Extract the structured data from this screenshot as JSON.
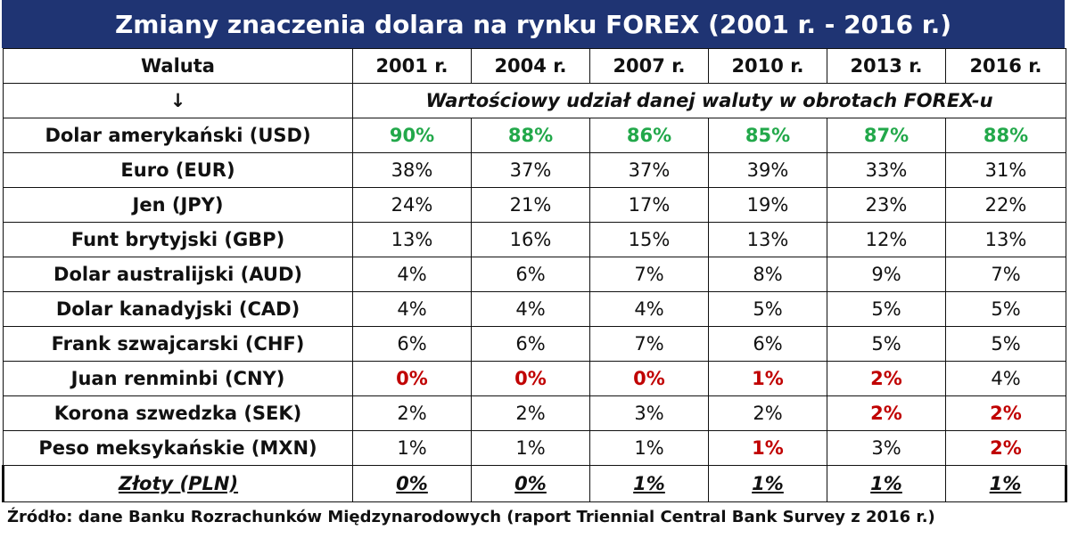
{
  "title": "Zmiany znaczenia dolara na rynku FOREX (2001 r. - 2016 r.)",
  "source": "Źródło: dane Banku Rozrachunków Międzynarodowych (raport Triennial Central Bank Survey z 2016 r.)",
  "colors": {
    "title_bg": "#1f3473",
    "usd_highlight": "#22a84a",
    "low_highlight": "#c00000"
  },
  "chart_data": {
    "type": "table",
    "corner_label": "Waluta",
    "corner_arrow": "↓",
    "columns": [
      "2001 r.",
      "2004 r.",
      "2007 r.",
      "2010 r.",
      "2013 r.",
      "2016 r."
    ],
    "caption": "Wartościowy udział danej waluty w obrotach FOREX-u",
    "rows": [
      {
        "label": "Dolar amerykański (USD)",
        "values": [
          "90%",
          "88%",
          "86%",
          "85%",
          "87%",
          "88%"
        ],
        "highlight": [
          "green",
          "green",
          "green",
          "green",
          "green",
          "green"
        ]
      },
      {
        "label": "Euro (EUR)",
        "values": [
          "38%",
          "37%",
          "37%",
          "39%",
          "33%",
          "31%"
        ],
        "highlight": [
          "",
          "",
          "",
          "",
          "",
          ""
        ]
      },
      {
        "label": "Jen (JPY)",
        "values": [
          "24%",
          "21%",
          "17%",
          "19%",
          "23%",
          "22%"
        ],
        "highlight": [
          "",
          "",
          "",
          "",
          "",
          ""
        ]
      },
      {
        "label": "Funt brytyjski (GBP)",
        "values": [
          "13%",
          "16%",
          "15%",
          "13%",
          "12%",
          "13%"
        ],
        "highlight": [
          "",
          "",
          "",
          "",
          "",
          ""
        ]
      },
      {
        "label": "Dolar australijski (AUD)",
        "values": [
          "4%",
          "6%",
          "7%",
          "8%",
          "9%",
          "7%"
        ],
        "highlight": [
          "",
          "",
          "",
          "",
          "",
          ""
        ]
      },
      {
        "label": "Dolar kanadyjski (CAD)",
        "values": [
          "4%",
          "4%",
          "4%",
          "5%",
          "5%",
          "5%"
        ],
        "highlight": [
          "",
          "",
          "",
          "",
          "",
          ""
        ]
      },
      {
        "label": "Frank szwajcarski (CHF)",
        "values": [
          "6%",
          "6%",
          "7%",
          "6%",
          "5%",
          "5%"
        ],
        "highlight": [
          "",
          "",
          "",
          "",
          "",
          ""
        ]
      },
      {
        "label": "Juan renminbi (CNY)",
        "values": [
          "0%",
          "0%",
          "0%",
          "1%",
          "2%",
          "4%"
        ],
        "highlight": [
          "red",
          "red",
          "red",
          "red",
          "red",
          ""
        ]
      },
      {
        "label": "Korona szwedzka (SEK)",
        "values": [
          "2%",
          "2%",
          "3%",
          "2%",
          "2%",
          "2%"
        ],
        "highlight": [
          "",
          "",
          "",
          "",
          "red",
          "red"
        ]
      },
      {
        "label": "Peso meksykańskie (MXN)",
        "values": [
          "1%",
          "1%",
          "1%",
          "1%",
          "3%",
          "2%"
        ],
        "highlight": [
          "",
          "",
          "",
          "red",
          "",
          "red"
        ]
      },
      {
        "label": "Złoty (PLN)",
        "values": [
          "0%",
          "0%",
          "1%",
          "1%",
          "1%",
          "1%"
        ],
        "highlight": [
          "pln",
          "pln",
          "pln",
          "pln",
          "pln",
          "pln"
        ]
      }
    ]
  }
}
